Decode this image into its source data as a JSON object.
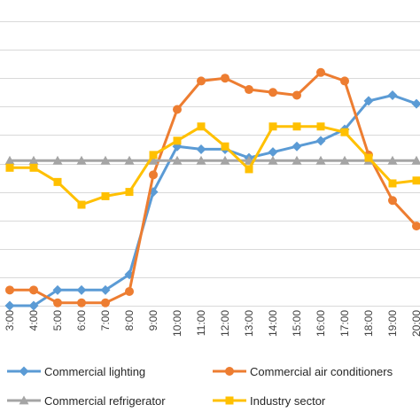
{
  "chart_data": {
    "type": "line",
    "categories": [
      "3:00",
      "4:00",
      "5:00",
      "6:00",
      "7:00",
      "8:00",
      "9:00",
      "10:00",
      "11:00",
      "12:00",
      "13:00",
      "14:00",
      "15:00",
      "16:00",
      "17:00",
      "18:00",
      "19:00",
      "20:00"
    ],
    "yticks": 11,
    "ylim": [
      0,
      10
    ],
    "grid": true,
    "legend_position": "bottom",
    "series": [
      {
        "name": "Commercial lighting",
        "color": "#5b9bd5",
        "marker": "diamond",
        "values": [
          0.0,
          0.0,
          0.55,
          0.55,
          0.55,
          1.1,
          4.0,
          5.6,
          5.5,
          5.5,
          5.2,
          5.4,
          5.6,
          5.8,
          6.2,
          7.2,
          7.4,
          7.1
        ]
      },
      {
        "name": "Commercial air conditioners",
        "color": "#ed7d31",
        "marker": "circle",
        "values": [
          0.55,
          0.55,
          0.1,
          0.1,
          0.1,
          0.5,
          4.6,
          6.9,
          7.9,
          8.0,
          7.6,
          7.5,
          7.4,
          8.2,
          7.9,
          5.3,
          3.7,
          2.8
        ]
      },
      {
        "name": "Commercial refrigerator",
        "color": "#a5a5a5",
        "marker": "triangle",
        "values": [
          5.1,
          5.1,
          5.1,
          5.1,
          5.1,
          5.1,
          5.1,
          5.1,
          5.1,
          5.1,
          5.1,
          5.1,
          5.1,
          5.1,
          5.1,
          5.1,
          5.1,
          5.1
        ]
      },
      {
        "name": "Industry sector",
        "color": "#ffc000",
        "marker": "square",
        "values": [
          4.85,
          4.85,
          4.35,
          3.55,
          3.85,
          4.0,
          5.3,
          5.8,
          6.3,
          5.6,
          4.8,
          6.3,
          6.3,
          6.3,
          6.1,
          5.2,
          4.3,
          4.4
        ]
      }
    ]
  }
}
